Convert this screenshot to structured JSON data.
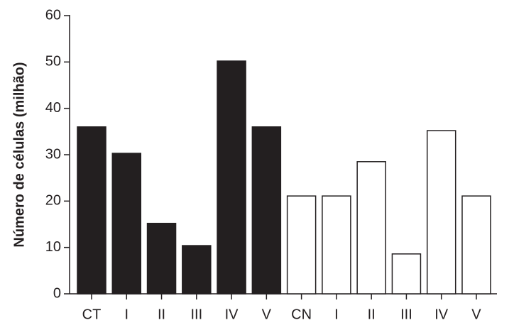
{
  "chart_data": {
    "type": "bar",
    "y_label": "Número de células (milhão)",
    "categories": [
      "CT",
      "I",
      "II",
      "III",
      "IV",
      "V",
      "CN",
      "I",
      "II",
      "III",
      "IV",
      "V"
    ],
    "values": [
      36,
      30.3,
      15.2,
      10.4,
      50.2,
      36,
      21.1,
      21.1,
      28.5,
      8.6,
      35.2,
      21.1
    ],
    "colors": [
      "#231f20",
      "#231f20",
      "#231f20",
      "#231f20",
      "#231f20",
      "#231f20",
      "#ffffff",
      "#ffffff",
      "#ffffff",
      "#ffffff",
      "#ffffff",
      "#ffffff"
    ],
    "edgecolor": "#231f20",
    "ylim": [
      0,
      60
    ],
    "yticks": [
      0,
      10,
      20,
      30,
      40,
      50,
      60
    ],
    "grid": false
  }
}
